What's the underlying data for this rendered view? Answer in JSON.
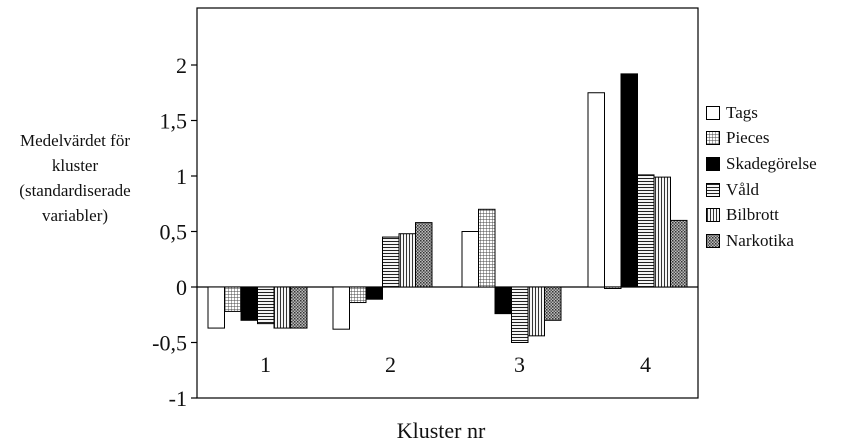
{
  "chart_data": {
    "type": "bar",
    "ylabel_lines": [
      "Medelvärdet för",
      "kluster",
      "(standardiserade",
      "variabler)"
    ],
    "xlabel": "Kluster nr",
    "categories": [
      "1",
      "2",
      "3",
      "4"
    ],
    "yticks": [
      {
        "value": -1,
        "label": "-1"
      },
      {
        "value": -0.5,
        "label": "-0,5"
      },
      {
        "value": 0,
        "label": "0"
      },
      {
        "value": 0.5,
        "label": "0,5"
      },
      {
        "value": 1,
        "label": "1"
      },
      {
        "value": 1.5,
        "label": "1,5"
      },
      {
        "value": 2,
        "label": "2"
      }
    ],
    "ylim": [
      -1,
      2.5
    ],
    "grid": false,
    "legend_position": "right",
    "series": [
      {
        "name": "Tags",
        "pattern": "white",
        "values": [
          -0.37,
          -0.38,
          0.5,
          1.75
        ]
      },
      {
        "name": "Pieces",
        "pattern": "grid",
        "values": [
          -0.22,
          -0.14,
          0.7,
          0.0
        ]
      },
      {
        "name": "Skadegörelse",
        "pattern": "black",
        "values": [
          -0.3,
          -0.11,
          -0.24,
          1.92
        ]
      },
      {
        "name": "Våld",
        "pattern": "hlines",
        "values": [
          -0.33,
          0.45,
          -0.5,
          1.01
        ]
      },
      {
        "name": "Bilbrott",
        "pattern": "vlines",
        "values": [
          -0.37,
          0.48,
          -0.44,
          0.99
        ]
      },
      {
        "name": "Narkotika",
        "pattern": "dots",
        "values": [
          -0.37,
          0.58,
          -0.3,
          0.6
        ]
      }
    ]
  }
}
